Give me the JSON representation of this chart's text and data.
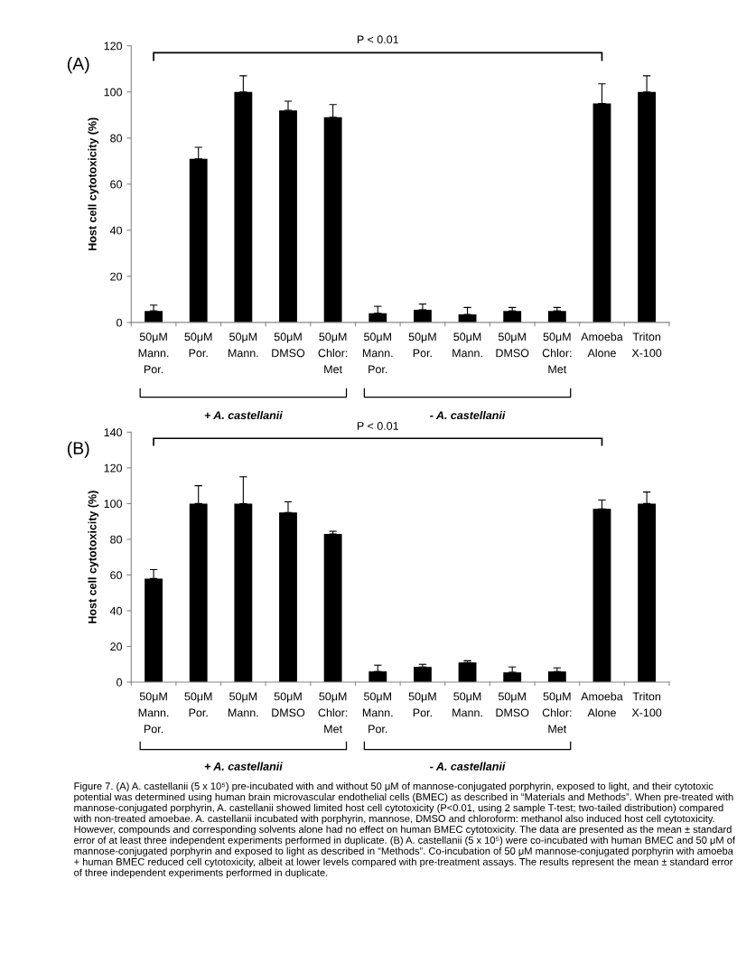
{
  "chart_data": [
    {
      "type": "bar",
      "title": "(A)",
      "ylabel": "Host cell cytotoxicity (%)",
      "categories": [
        "50μM\nMann.\nPor.",
        "50μM\nPor.",
        "50μM\nMann.",
        "50μM\nDMSO",
        "50μM\nChlor:\nMet",
        "50μM\nMann.\nPor.",
        "50μM\nPor.",
        "50μM\nMann.",
        "50μM\nDMSO",
        "50μM\nChlor:\nMet",
        "Amoeba\nAlone",
        "Triton\nX-100"
      ],
      "values": [
        5,
        71,
        100,
        92,
        89,
        4,
        5.5,
        3.5,
        5,
        5,
        95,
        100
      ],
      "errors": [
        [
          5,
          7.5
        ],
        [
          71,
          76
        ],
        [
          100,
          107
        ],
        [
          92,
          96
        ],
        [
          89,
          94.5
        ],
        [
          4,
          7
        ],
        [
          5.5,
          8
        ],
        [
          3.5,
          6.5
        ],
        [
          5,
          6.5
        ],
        [
          5,
          6.5
        ],
        [
          95,
          103.5
        ],
        [
          100,
          107
        ]
      ],
      "color": "#000000",
      "ylim": [
        0,
        120
      ],
      "yticks": [
        0,
        20,
        40,
        60,
        80,
        100,
        120
      ],
      "grid": false,
      "annotations": [
        "P < 0.01",
        "+ A. castellanii",
        "- A. castellanii"
      ]
    },
    {
      "type": "bar",
      "title": "(B)",
      "ylabel": "Host cell cytotoxicity (%)",
      "categories": [
        "50μM\nMann.\nPor.",
        "50μM\nPor.",
        "50μM\nMann.",
        "50μM\nDMSO",
        "50μM\nChlor:\nMet",
        "50μM\nMann.\nPor.",
        "50μM\nPor.",
        "50μM\nMann.",
        "50μM\nDMSO",
        "50μM\nChlor:\nMet",
        "Amoeba\nAlone",
        "Triton\nX-100"
      ],
      "values": [
        58,
        100,
        100,
        95,
        83,
        6,
        8.5,
        11,
        5.5,
        6,
        97,
        100
      ],
      "errors": [
        [
          58,
          63
        ],
        [
          100,
          110
        ],
        [
          100,
          115
        ],
        [
          95,
          101
        ],
        [
          83,
          84.5
        ],
        [
          6,
          9.5
        ],
        [
          8.5,
          10
        ],
        [
          11,
          12
        ],
        [
          5.5,
          8.5
        ],
        [
          6,
          8
        ],
        [
          97,
          102
        ],
        [
          100,
          106.5
        ]
      ],
      "color": "#000000",
      "ylim": [
        0,
        140
      ],
      "yticks": [
        0,
        20,
        40,
        60,
        80,
        100,
        120,
        140
      ],
      "grid": false,
      "annotations": [
        "P < 0.01",
        "+ A. castellanii",
        "- A. castellanii",
        "Figure 7. (A) A. castellanii (5 x 10⁵) pre-incubated with and without 50 μM of mannose-conjugated porphyrin, exposed to light, and their cytotoxic potential was determined using human brain microvascular endothelial cells (BMEC) as described in “Materials and Methods”. When pre-treated with mannose-conjugated porphyrin, A. castellanii showed limited host cell cytotoxicity (P<0.01, using 2 sample T-test; two-tailed distribution) compared with non-treated amoebae. A. castellanii incubated with porphyrin, mannose, DMSO and chloroform: methanol also induced host cell cytotoxicity. However, compounds and corresponding solvents alone had no effect on human BMEC cytotoxicity. The data are presented as the mean ± standard error of at least three independent experiments performed in duplicate. (B) A. castellanii (5 x 10⁵) were co-incubated with human BMEC and 50 μM of mannose-conjugated porphyrin and exposed to light as described in “Methods”. Co-incubation of 50 μM mannose-conjugated porphyrin with amoeba + human BMEC reduced cell cytotoxicity, albeit at lower levels compared with pre-treatment assays. The results represent the mean ± standard error of three independent experiments performed in duplicate."
      ]
    }
  ]
}
